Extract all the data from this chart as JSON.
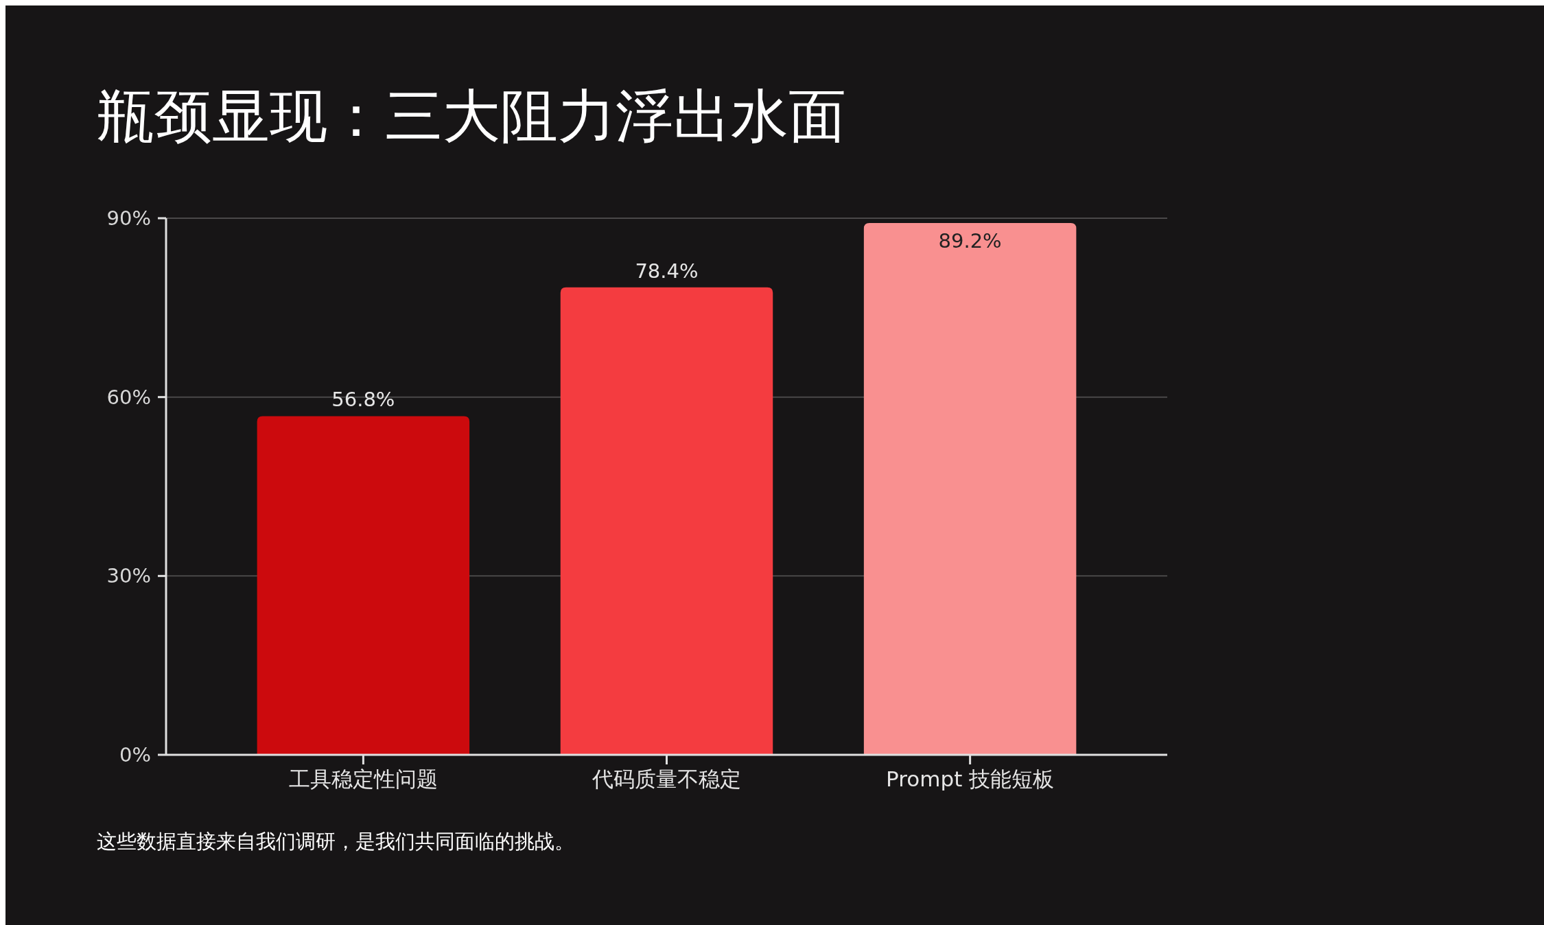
{
  "chart_data": {
    "type": "bar",
    "title": "瓶颈显现：三大阻力浮出水面",
    "categories": [
      "工具稳定性问题",
      "代码质量不稳定",
      "Prompt 技能短板"
    ],
    "values": [
      56.8,
      78.4,
      89.2
    ],
    "colors": [
      "#cc0a0d",
      "#f43c40",
      "#f99090"
    ],
    "ylim": [
      0,
      90
    ],
    "yticks": [
      {
        "value": 0,
        "label": "0%"
      },
      {
        "value": 30,
        "label": "30%"
      },
      {
        "value": 60,
        "label": "60%"
      },
      {
        "value": 90,
        "label": "90%"
      }
    ],
    "value_labels": [
      "56.8%",
      "78.4%",
      "89.2%"
    ],
    "grid": "y",
    "annotations": [
      "这些数据直接来自我们调研，是我们共同面临的挑战。"
    ]
  }
}
